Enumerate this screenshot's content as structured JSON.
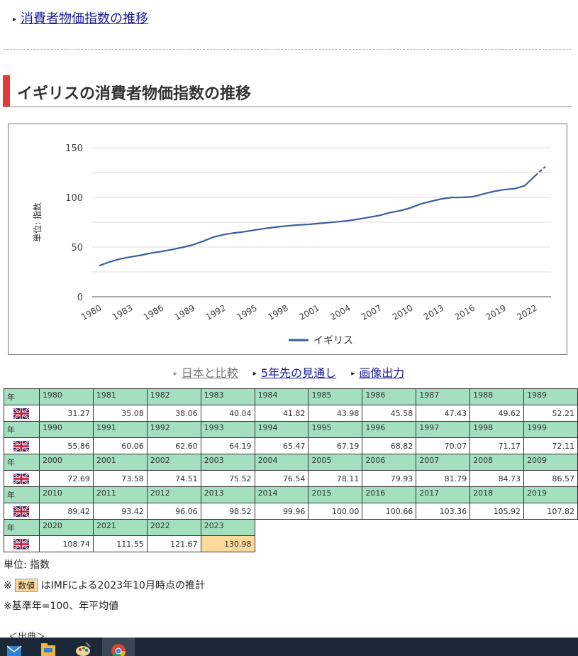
{
  "top_link": {
    "label": "消費者物価指数の推移"
  },
  "section": {
    "title": "イギリスの消費者物価指数の推移"
  },
  "chart_data": {
    "type": "line",
    "ylabel": "単位: 指数",
    "ylim": [
      0,
      150
    ],
    "yticks": [
      0,
      50,
      100,
      150
    ],
    "x_tick_labels": [
      "1980",
      "1983",
      "1986",
      "1989",
      "1992",
      "1995",
      "1998",
      "2001",
      "2004",
      "2007",
      "2010",
      "2013",
      "2016",
      "2019",
      "2022"
    ],
    "x": [
      1980,
      1981,
      1982,
      1983,
      1984,
      1985,
      1986,
      1987,
      1988,
      1989,
      1990,
      1991,
      1992,
      1993,
      1994,
      1995,
      1996,
      1997,
      1998,
      1999,
      2000,
      2001,
      2002,
      2003,
      2004,
      2005,
      2006,
      2007,
      2008,
      2009,
      2010,
      2011,
      2012,
      2013,
      2014,
      2015,
      2016,
      2017,
      2018,
      2019,
      2020,
      2021,
      2022,
      2023
    ],
    "series": [
      {
        "name": "イギリス",
        "color": "#3a5fa0",
        "values": [
          31.27,
          35.08,
          38.06,
          40.04,
          41.82,
          43.98,
          45.58,
          47.43,
          49.62,
          52.21,
          55.86,
          60.06,
          62.6,
          64.19,
          65.47,
          67.19,
          68.82,
          70.07,
          71.17,
          72.11,
          72.69,
          73.58,
          74.51,
          75.52,
          76.54,
          78.11,
          79.93,
          81.79,
          84.73,
          86.57,
          89.42,
          93.42,
          96.06,
          98.52,
          99.96,
          100.0,
          100.66,
          103.36,
          105.92,
          107.82,
          108.74,
          111.55,
          121.67,
          130.98
        ]
      }
    ],
    "estimate_from": 2023,
    "legend_position": "bottom",
    "grid": true
  },
  "links": {
    "compare": "日本と比較",
    "forecast": "5年先の見通し",
    "image": "画像出力"
  },
  "table": {
    "year_header": "年",
    "flag_icon": "uk-flag-icon",
    "rows": [
      {
        "years": [
          "1980",
          "1981",
          "1982",
          "1983",
          "1984",
          "1985",
          "1986",
          "1987",
          "1988",
          "1989"
        ],
        "values": [
          "31.27",
          "35.08",
          "38.06",
          "40.04",
          "41.82",
          "43.98",
          "45.58",
          "47.43",
          "49.62",
          "52.21"
        ]
      },
      {
        "years": [
          "1990",
          "1991",
          "1992",
          "1993",
          "1994",
          "1995",
          "1996",
          "1997",
          "1998",
          "1999"
        ],
        "values": [
          "55.86",
          "60.06",
          "62.60",
          "64.19",
          "65.47",
          "67.19",
          "68.82",
          "70.07",
          "71.17",
          "72.11"
        ]
      },
      {
        "years": [
          "2000",
          "2001",
          "2002",
          "2003",
          "2004",
          "2005",
          "2006",
          "2007",
          "2008",
          "2009"
        ],
        "values": [
          "72.69",
          "73.58",
          "74.51",
          "75.52",
          "76.54",
          "78.11",
          "79.93",
          "81.79",
          "84.73",
          "86.57"
        ]
      },
      {
        "years": [
          "2010",
          "2011",
          "2012",
          "2013",
          "2014",
          "2015",
          "2016",
          "2017",
          "2018",
          "2019"
        ],
        "values": [
          "89.42",
          "93.42",
          "96.06",
          "98.52",
          "99.96",
          "100.00",
          "100.66",
          "103.36",
          "105.92",
          "107.82"
        ]
      },
      {
        "years": [
          "2020",
          "2021",
          "2022",
          "2023"
        ],
        "values": [
          "108.74",
          "111.55",
          "121.67",
          "130.98"
        ]
      }
    ],
    "estimate_year": "2023"
  },
  "notes": {
    "unit": "単位: 指数",
    "estimate_prefix": "※",
    "estimate_badge": "数値",
    "estimate_text": "はIMFによる2023年10月時点の推計",
    "base": "※基準年=100、年平均値"
  },
  "source": {
    "label": "＜出典＞"
  },
  "taskbar": {
    "icons": [
      "mail-icon",
      "file-explorer-icon",
      "paint-icon",
      "chrome-icon"
    ]
  }
}
